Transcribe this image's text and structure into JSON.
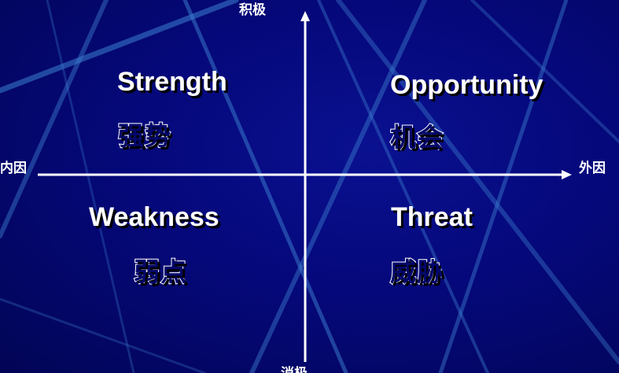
{
  "axes": {
    "top": "积极",
    "bottom": "消极",
    "left": "内因",
    "right": "外因"
  },
  "quadrants": {
    "top_left": {
      "en": "Strength",
      "zh": "强势"
    },
    "top_right": {
      "en": "Opportunity",
      "zh": "机会"
    },
    "bottom_left": {
      "en": "Weakness",
      "zh": "弱点"
    },
    "bottom_right": {
      "en": "Threat",
      "zh": "威胁"
    }
  },
  "colors": {
    "background": "#04076b",
    "accent_lines": "#3a7fd0",
    "text": "#ffffff"
  }
}
